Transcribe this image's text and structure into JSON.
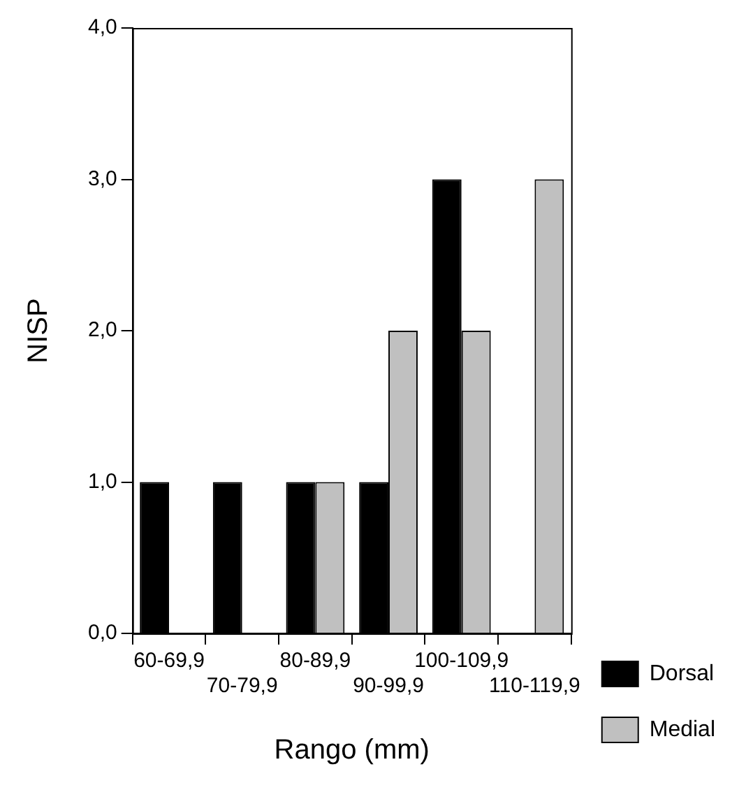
{
  "chart_data": {
    "type": "bar",
    "xlabel": "Rango (mm)",
    "ylabel": "NISP",
    "categories": [
      "60-69,9",
      "70-79,9",
      "80-89,9",
      "90-99,9",
      "100-109,9",
      "110-119,9"
    ],
    "series": [
      {
        "name": "Dorsal",
        "color": "#000000",
        "values": [
          1,
          1,
          1,
          1,
          3,
          null
        ]
      },
      {
        "name": "Medial",
        "color": "#c0c0c0",
        "values": [
          null,
          null,
          1,
          2,
          2,
          3
        ]
      }
    ],
    "ylim": [
      0,
      4
    ],
    "yticks": [
      {
        "value": 0,
        "label": "0,0"
      },
      {
        "value": 1,
        "label": "1,0"
      },
      {
        "value": 2,
        "label": "2,0"
      },
      {
        "value": 3,
        "label": "3,0"
      },
      {
        "value": 4,
        "label": "4,0"
      }
    ],
    "grid": false,
    "legend": "right"
  }
}
